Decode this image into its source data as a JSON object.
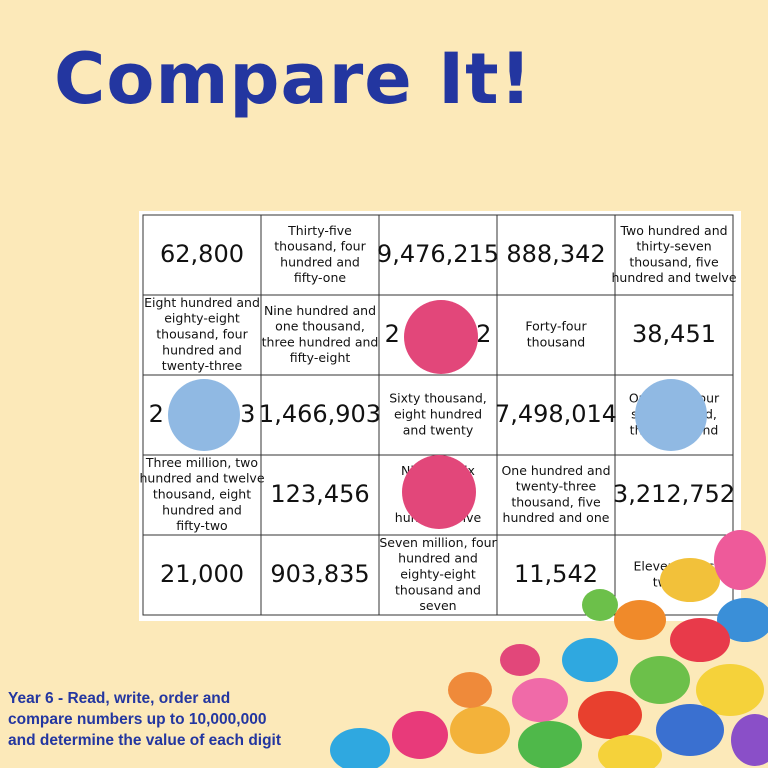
{
  "title": "Compare It!",
  "board": {
    "rows": [
      [
        [
          "62,800"
        ],
        [
          "Thirty-five",
          "thousand, four",
          "hundred and",
          "fifty-one"
        ],
        [
          "9,476,215"
        ],
        [
          "888,342"
        ],
        [
          "Two hundred and",
          "thirty-seven",
          "thousand, five",
          "hundred and twelve"
        ]
      ],
      [
        [
          "Eight hundred and",
          "eighty-eight",
          "thousand, four",
          "hundred and",
          "twenty-three"
        ],
        [
          "Nine hundred and",
          "one thousand,",
          "three hundred and",
          "fifty-eight"
        ],
        [
          "2          2"
        ],
        [
          "Forty-four",
          "thousand"
        ],
        [
          "38,451"
        ]
      ],
      [
        [
          "2          3"
        ],
        [
          "1,466,903"
        ],
        [
          "Sixty thousand,",
          "eight hundred",
          "and twenty"
        ],
        [
          "7,498,014"
        ],
        [
          "One          four",
          "sixt           nd,",
          "thre          and"
        ]
      ],
      [
        [
          "Three million, two",
          "hundred and twelve",
          "thousand, eight",
          "hundred and",
          "fifty-two"
        ],
        [
          "123,456"
        ],
        [
          "Ni           six",
          "h             e",
          "t",
          "hun          five"
        ],
        [
          "One hundred and",
          "twenty-three",
          "thousand, five",
          "hundred and one"
        ],
        [
          "3,212,752"
        ]
      ],
      [
        [
          "21,000"
        ],
        [
          "903,835"
        ],
        [
          "Seven million, four",
          "hundred and",
          "eighty-eight",
          "thousand and",
          "seven"
        ],
        [
          "11,542"
        ],
        [
          "Eleven thous",
          "two hu"
        ]
      ]
    ]
  },
  "footer": [
    "Year 6 - Read, write, order and",
    "compare numbers up to 10,000,000",
    "and determine the value of each digit"
  ]
}
